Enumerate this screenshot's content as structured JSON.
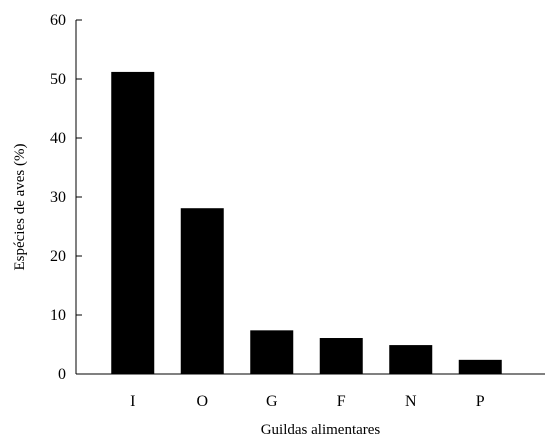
{
  "chart_data": {
    "type": "bar",
    "title": "",
    "xlabel": "Guildas alimentares",
    "ylabel": "Espécies de aves (%)",
    "categories": [
      "I",
      "O",
      "G",
      "F",
      "N",
      "P"
    ],
    "values": [
      51.2,
      28.1,
      7.4,
      6.1,
      4.9,
      2.4
    ],
    "ylim": [
      0,
      60
    ],
    "yticks": [
      0,
      10,
      20,
      30,
      40,
      50,
      60
    ],
    "bar_color": "#000000",
    "grid": false,
    "legend": "none"
  }
}
